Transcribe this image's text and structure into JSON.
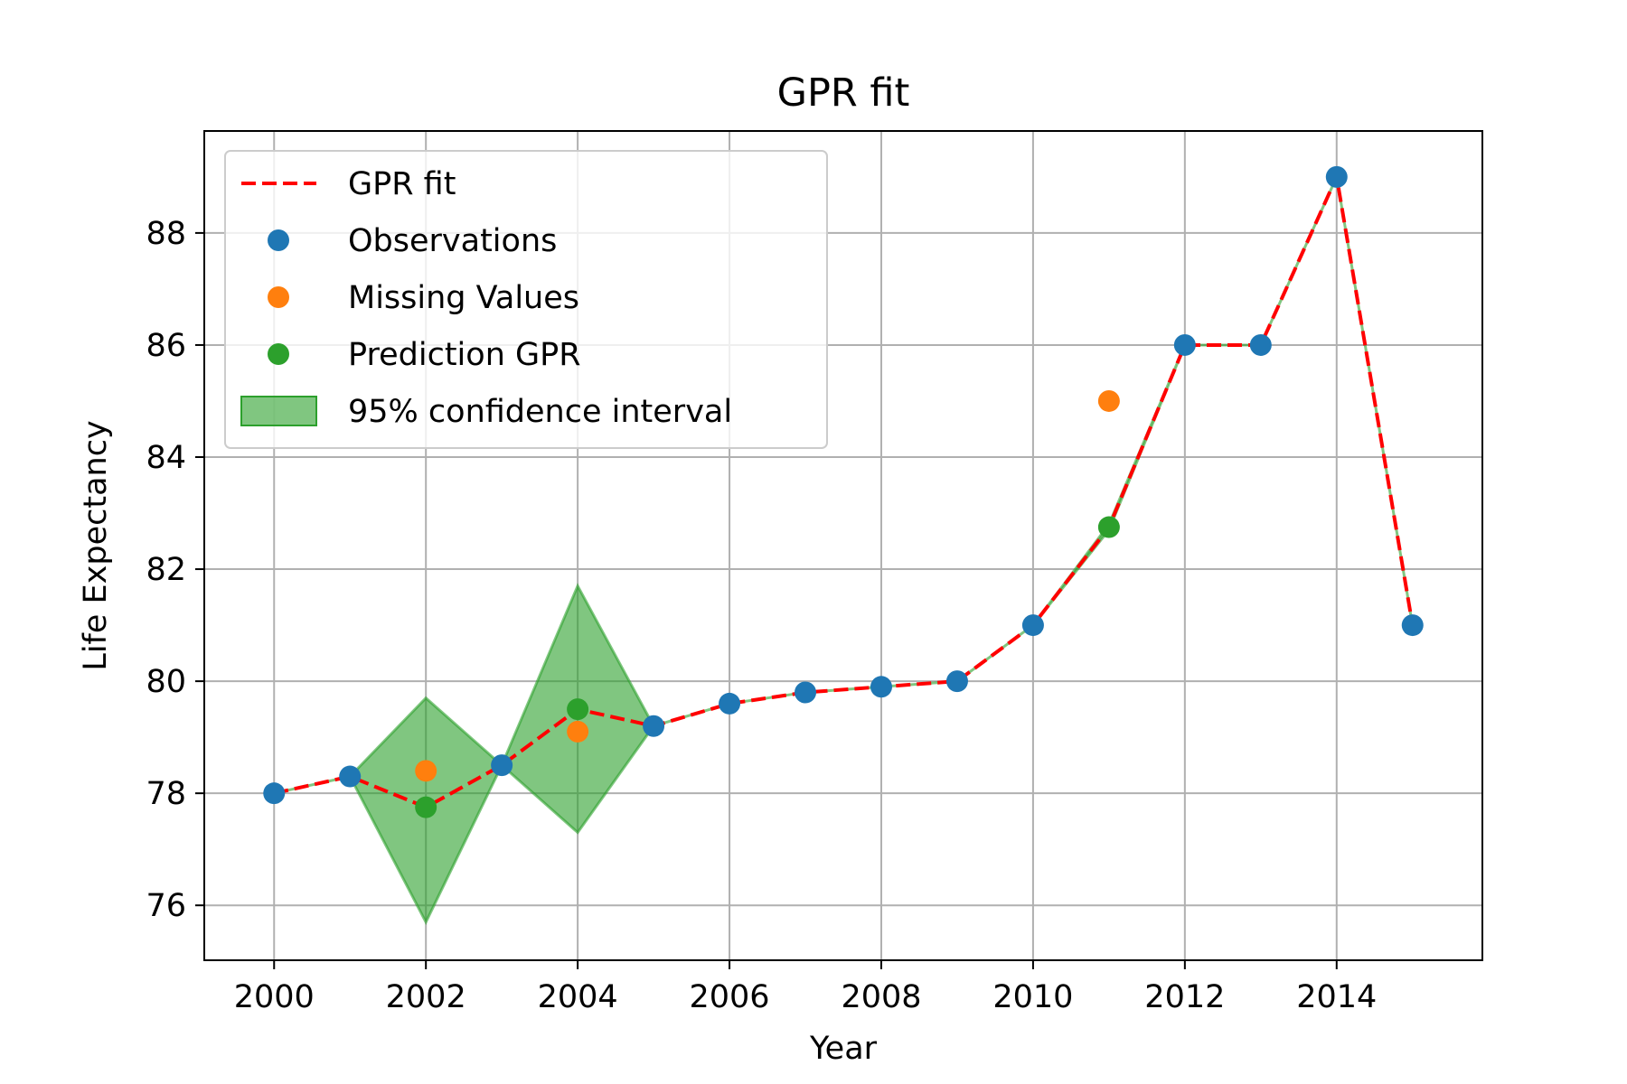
{
  "chart_data": {
    "type": "line",
    "title": "GPR fit",
    "xlabel": "Year",
    "ylabel": "Life Expectancy",
    "xlim": [
      1999.08,
      2015.92
    ],
    "ylim": [
      75.02,
      89.82
    ],
    "grid": true,
    "legend_position": "top-left",
    "x_ticks": [
      2000,
      2002,
      2004,
      2006,
      2008,
      2010,
      2012,
      2014
    ],
    "y_ticks": [
      76,
      78,
      80,
      82,
      84,
      86,
      88
    ],
    "legend": [
      {
        "label": "GPR fit",
        "kind": "dashed-line",
        "color": "#ff0000"
      },
      {
        "label": "Observations",
        "kind": "marker",
        "color": "#1f77b4"
      },
      {
        "label": "Missing Values",
        "kind": "marker",
        "color": "#ff7f0e"
      },
      {
        "label": "Prediction GPR",
        "kind": "marker",
        "color": "#2ca02c"
      },
      {
        "label": "95% confidence interval",
        "kind": "patch",
        "color": "#2ca02c"
      }
    ],
    "series": [
      {
        "name": "GPR fit",
        "kind": "line",
        "color": "#ff0000",
        "x": [
          2000,
          2001,
          2002,
          2003,
          2004,
          2005,
          2006,
          2007,
          2008,
          2009,
          2010,
          2011,
          2012,
          2013,
          2014,
          2015
        ],
        "y": [
          78.0,
          78.3,
          77.75,
          78.5,
          79.5,
          79.2,
          79.6,
          79.8,
          79.9,
          80.0,
          81.0,
          82.75,
          86.0,
          86.0,
          89.0,
          81.0
        ]
      },
      {
        "name": "95% confidence interval",
        "kind": "band",
        "color": "#2ca02c",
        "x": [
          2000,
          2001,
          2002,
          2003,
          2004,
          2005,
          2006,
          2007,
          2008,
          2009,
          2010,
          2011,
          2012,
          2013,
          2014,
          2015
        ],
        "lower": [
          78.0,
          78.3,
          75.7,
          78.5,
          77.3,
          79.2,
          79.6,
          79.8,
          79.9,
          80.0,
          81.0,
          82.7,
          86.0,
          86.0,
          89.0,
          81.0
        ],
        "upper": [
          78.0,
          78.3,
          79.7,
          78.5,
          81.7,
          79.2,
          79.6,
          79.8,
          79.9,
          80.0,
          81.0,
          82.8,
          86.0,
          86.0,
          89.0,
          81.0
        ]
      },
      {
        "name": "Observations",
        "kind": "scatter",
        "color": "#1f77b4",
        "x": [
          2000,
          2001,
          2003,
          2005,
          2006,
          2007,
          2008,
          2009,
          2010,
          2012,
          2013,
          2014,
          2015
        ],
        "y": [
          78.0,
          78.3,
          78.5,
          79.2,
          79.6,
          79.8,
          79.9,
          80.0,
          81.0,
          86.0,
          86.0,
          89.0,
          81.0
        ]
      },
      {
        "name": "Missing Values",
        "kind": "scatter",
        "color": "#ff7f0e",
        "x": [
          2002,
          2004,
          2011
        ],
        "y": [
          78.4,
          79.1,
          85.0
        ]
      },
      {
        "name": "Prediction GPR",
        "kind": "scatter",
        "color": "#2ca02c",
        "x": [
          2002,
          2004,
          2011
        ],
        "y": [
          77.75,
          79.5,
          82.75
        ]
      }
    ]
  }
}
